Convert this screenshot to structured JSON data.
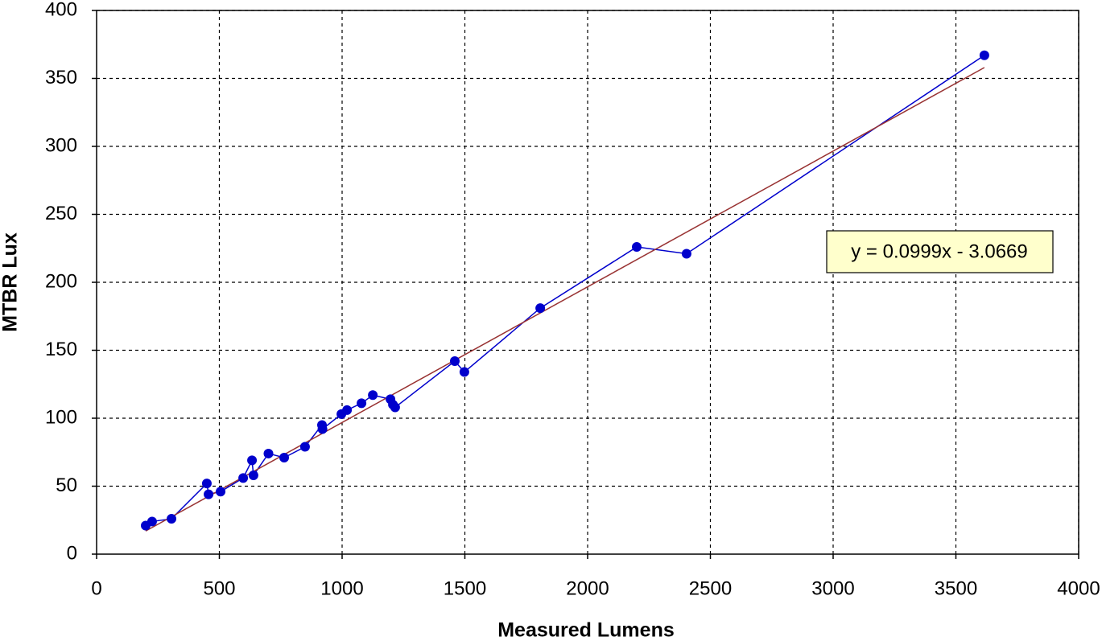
{
  "chart_data": {
    "type": "scatter",
    "x_label": "Measured Lumens",
    "y_label": "MTBR Lux",
    "annotation": "y = 0.0999x - 3.0669",
    "xlim": [
      0,
      4000
    ],
    "xticks": [
      0,
      500,
      1000,
      1500,
      2000,
      2500,
      3000,
      3500,
      4000
    ],
    "ylim": [
      0,
      400
    ],
    "yticks": [
      0,
      50,
      100,
      150,
      200,
      250,
      300,
      350,
      400
    ],
    "grid": true,
    "series": [
      {
        "color": "#0000cc",
        "x": [
          200,
          226,
          305,
          449,
          456,
          505,
          597,
          633,
          639,
          700,
          764,
          849,
          918,
          920,
          997,
          1020,
          1079,
          1125,
          1197,
          1207,
          1216,
          1459,
          1498,
          1807,
          2200,
          2403,
          3616
        ],
        "values": [
          21,
          24,
          26,
          52,
          44,
          46,
          56,
          69,
          58,
          74,
          71,
          79,
          95,
          92,
          103,
          106,
          111,
          117,
          114,
          110,
          108,
          142,
          134,
          181,
          226,
          221,
          367
        ]
      },
      {
        "color": "#993333",
        "x": [
          200,
          3616
        ],
        "values": [
          17,
          358
        ]
      }
    ]
  }
}
